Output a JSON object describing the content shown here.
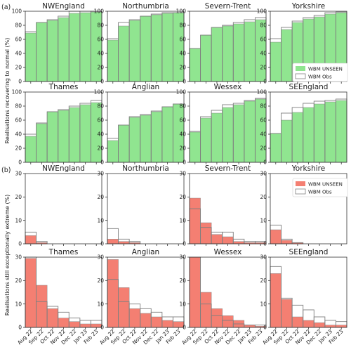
{
  "categories": [
    "Aug 22",
    "Sep 22",
    "Oct 22",
    "Nov 22",
    "Dec 22",
    "Jan 23",
    "Feb 23"
  ],
  "colors": {
    "unseen_top": "#90e590",
    "unseen_bottom": "#f47f72",
    "obs_edge": "#7f7f7f",
    "bar_edge": "#8c8c8c"
  },
  "rows": [
    {
      "panel_label": "(a)",
      "ylabel": "Realisations recovering to normal (%)",
      "ylim": [
        0,
        100
      ],
      "yticks": [
        "0",
        "20",
        "40",
        "60",
        "80",
        "100"
      ],
      "ytick_values": [
        0,
        20,
        40,
        60,
        80,
        100
      ]
    },
    {
      "panel_label": "(b)",
      "ylabel": "Realisations still exceptionally extreme (%)",
      "ylim": [
        0,
        30
      ],
      "yticks": [
        "0",
        "10",
        "20",
        "30"
      ],
      "ytick_values": [
        0,
        10,
        20,
        30
      ]
    }
  ],
  "legend": {
    "unseen": "WBM UNSEEN",
    "obs": "WBM Obs"
  },
  "chart_data": [
    {
      "type": "bar",
      "row": 0,
      "title": "NWEngland",
      "series": [
        {
          "name": "WBM UNSEEN",
          "values": [
            69,
            84,
            87,
            91,
            97,
            98,
            99
          ]
        },
        {
          "name": "WBM Obs",
          "values": [
            71,
            84,
            88,
            93,
            100,
            100,
            100
          ]
        }
      ]
    },
    {
      "type": "bar",
      "row": 0,
      "title": "Northumbria",
      "series": [
        {
          "name": "WBM UNSEEN",
          "values": [
            59,
            79,
            87,
            93,
            95,
            97,
            98
          ]
        },
        {
          "name": "WBM Obs",
          "values": [
            61,
            84,
            88,
            93,
            96,
            98,
            98
          ]
        }
      ]
    },
    {
      "type": "bar",
      "row": 0,
      "title": "Severn-Trent",
      "series": [
        {
          "name": "WBM UNSEEN",
          "values": [
            47,
            66,
            77,
            79,
            82,
            85,
            88
          ]
        },
        {
          "name": "WBM Obs",
          "values": [
            47,
            66,
            77,
            80,
            84,
            88,
            91
          ]
        }
      ]
    },
    {
      "type": "bar",
      "row": 0,
      "title": "Yorkshire",
      "series": [
        {
          "name": "WBM UNSEEN",
          "values": [
            56,
            74,
            84,
            89,
            92,
            96,
            98
          ]
        },
        {
          "name": "WBM Obs",
          "values": [
            61,
            77,
            86,
            91,
            94,
            98,
            99
          ]
        }
      ]
    },
    {
      "type": "bar",
      "row": 1,
      "title": "Thames",
      "series": [
        {
          "name": "WBM UNSEEN",
          "values": [
            37,
            55,
            72,
            74,
            78,
            82,
            85
          ]
        },
        {
          "name": "WBM Obs",
          "values": [
            40,
            56,
            72,
            75,
            80,
            84,
            88
          ]
        }
      ]
    },
    {
      "type": "bar",
      "row": 1,
      "title": "Anglian",
      "series": [
        {
          "name": "WBM UNSEEN",
          "values": [
            31,
            53,
            64,
            67,
            72,
            79,
            83
          ]
        },
        {
          "name": "WBM Obs",
          "values": [
            34,
            53,
            65,
            68,
            73,
            79,
            83
          ]
        }
      ]
    },
    {
      "type": "bar",
      "row": 1,
      "title": "Wessex",
      "series": [
        {
          "name": "WBM UNSEEN",
          "values": [
            43,
            63,
            70,
            78,
            82,
            87,
            90
          ]
        },
        {
          "name": "WBM Obs",
          "values": [
            44,
            65,
            74,
            82,
            84,
            88,
            91
          ]
        }
      ]
    },
    {
      "type": "bar",
      "row": 1,
      "title": "SEEngland",
      "series": [
        {
          "name": "WBM UNSEEN",
          "values": [
            41,
            60,
            71,
            78,
            83,
            86,
            88
          ]
        },
        {
          "name": "WBM Obs",
          "values": [
            41,
            70,
            78,
            84,
            87,
            88,
            90
          ]
        }
      ]
    },
    {
      "type": "bar",
      "row": 2,
      "title": "NWEngland",
      "series": [
        {
          "name": "WBM UNSEEN",
          "values": [
            3.5,
            0.5,
            0,
            0,
            0,
            0,
            0
          ]
        },
        {
          "name": "WBM Obs",
          "values": [
            5,
            1,
            0,
            0,
            0,
            0,
            0
          ]
        }
      ]
    },
    {
      "type": "bar",
      "row": 2,
      "title": "Northumbria",
      "series": [
        {
          "name": "WBM UNSEEN",
          "values": [
            2,
            1,
            0.5,
            0,
            0,
            0,
            0
          ]
        },
        {
          "name": "WBM Obs",
          "values": [
            6.5,
            2,
            1,
            0,
            0,
            0,
            0
          ]
        }
      ]
    },
    {
      "type": "bar",
      "row": 2,
      "title": "Severn-Trent",
      "series": [
        {
          "name": "WBM UNSEEN",
          "values": [
            19.5,
            9,
            4,
            3,
            1,
            0.5,
            0.5
          ]
        },
        {
          "name": "WBM Obs",
          "values": [
            15,
            7,
            5,
            5,
            2,
            1,
            1
          ]
        }
      ]
    },
    {
      "type": "bar",
      "row": 2,
      "title": "Yorkshire",
      "series": [
        {
          "name": "WBM UNSEEN",
          "values": [
            6,
            1.5,
            0.5,
            0,
            0,
            0,
            0
          ]
        },
        {
          "name": "WBM Obs",
          "values": [
            8,
            2,
            0.5,
            0,
            0,
            0,
            0
          ]
        }
      ]
    },
    {
      "type": "bar",
      "row": 3,
      "title": "Thames",
      "series": [
        {
          "name": "WBM UNSEEN",
          "values": [
            29.5,
            18,
            8,
            4,
            2.5,
            1.5,
            1.5
          ]
        },
        {
          "name": "WBM Obs",
          "values": [
            30,
            11,
            9,
            6.5,
            4,
            3,
            3
          ]
        }
      ]
    },
    {
      "type": "bar",
      "row": 3,
      "title": "Anglian",
      "series": [
        {
          "name": "WBM UNSEEN",
          "values": [
            29,
            17,
            8,
            6,
            4.5,
            3,
            2.5
          ]
        },
        {
          "name": "WBM Obs",
          "values": [
            20.5,
            11,
            10,
            8,
            6.5,
            4.5,
            4.5
          ]
        }
      ]
    },
    {
      "type": "bar",
      "row": 3,
      "title": "Wessex",
      "series": [
        {
          "name": "WBM UNSEEN",
          "values": [
            30,
            15,
            8,
            5,
            3,
            1,
            0.5
          ]
        },
        {
          "name": "WBM Obs",
          "values": [
            30,
            10,
            5,
            3,
            1.5,
            1,
            1
          ]
        }
      ]
    },
    {
      "type": "bar",
      "row": 3,
      "title": "SEEngland",
      "series": [
        {
          "name": "WBM UNSEEN",
          "values": [
            23,
            12,
            4.5,
            3,
            2,
            1,
            1
          ]
        },
        {
          "name": "WBM Obs",
          "values": [
            26,
            12.5,
            9.5,
            7.5,
            4.5,
            3,
            2.5
          ]
        }
      ]
    }
  ]
}
